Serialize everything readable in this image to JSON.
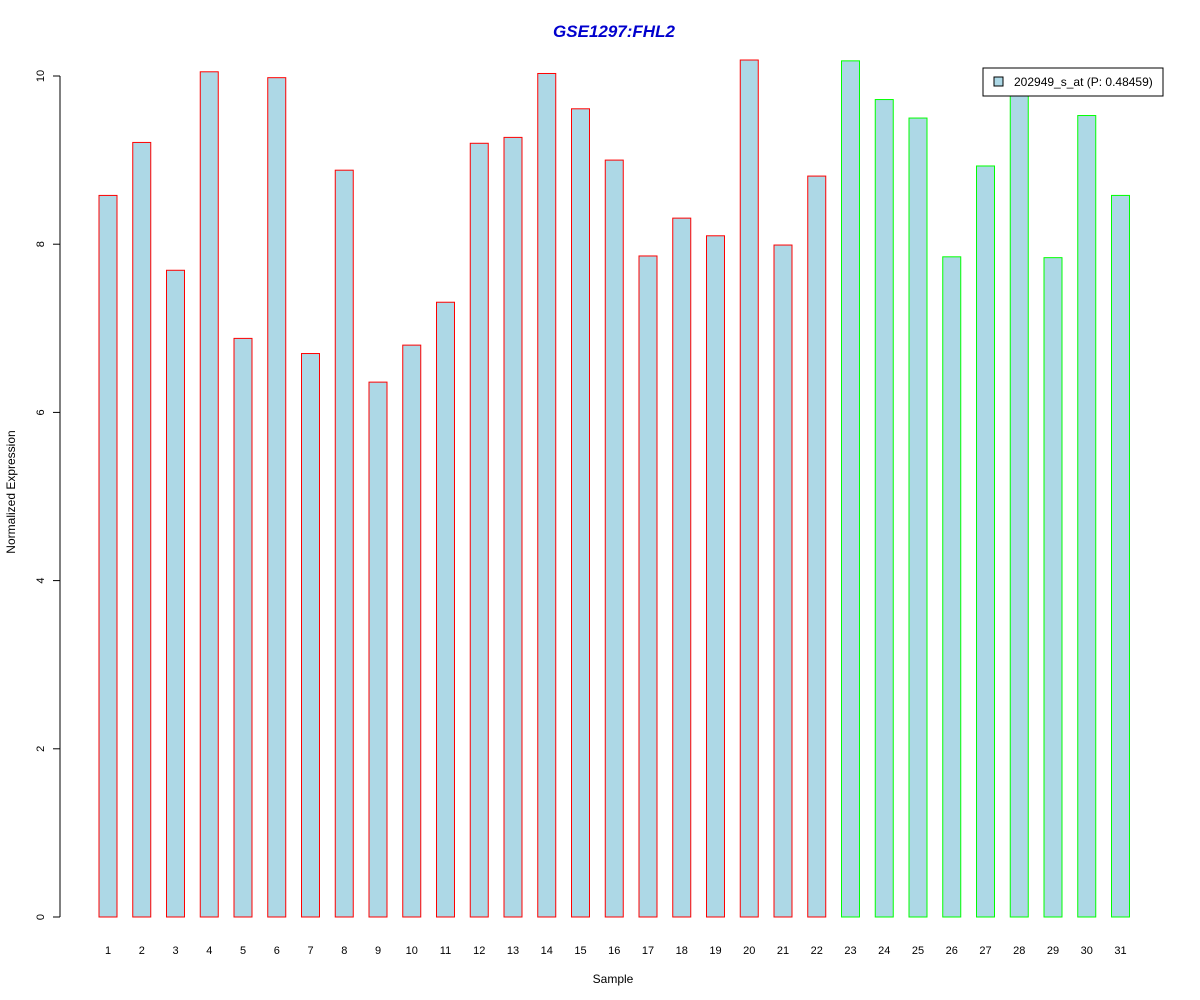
{
  "chart_data": {
    "type": "bar",
    "title": "GSE1297:FHL2",
    "xlabel": "Sample",
    "ylabel": "Normalized Expression",
    "ylim": [
      0,
      10.2
    ],
    "yticks": [
      "0",
      "2",
      "4",
      "6",
      "8",
      "10"
    ],
    "categories": [
      "1",
      "2",
      "3",
      "4",
      "5",
      "6",
      "7",
      "8",
      "9",
      "10",
      "11",
      "12",
      "13",
      "14",
      "15",
      "16",
      "17",
      "18",
      "19",
      "20",
      "21",
      "22",
      "23",
      "24",
      "25",
      "26",
      "27",
      "28",
      "29",
      "30",
      "31"
    ],
    "series": [
      {
        "name": "202949_s_at (P: 0.48459)",
        "values": [
          8.58,
          9.21,
          7.69,
          10.05,
          6.88,
          9.98,
          6.7,
          8.88,
          6.36,
          6.8,
          7.31,
          9.2,
          9.27,
          10.03,
          9.61,
          9.0,
          7.86,
          8.31,
          8.1,
          10.19,
          7.99,
          8.81,
          10.18,
          9.72,
          9.5,
          7.85,
          8.93,
          9.8,
          7.84,
          9.53,
          8.58
        ]
      }
    ],
    "groups": [
      "red",
      "red",
      "red",
      "red",
      "red",
      "red",
      "red",
      "red",
      "red",
      "red",
      "red",
      "red",
      "red",
      "red",
      "red",
      "red",
      "red",
      "red",
      "red",
      "red",
      "red",
      "red",
      "green",
      "green",
      "green",
      "green",
      "green",
      "green",
      "green",
      "green",
      "green"
    ],
    "legend_position": "top-right",
    "grid": false,
    "colors": {
      "bar_fill": "#add8e6",
      "group_red": "#ff0000",
      "group_green": "#00ff00",
      "title": "#0000cd",
      "axis": "#000000"
    }
  }
}
